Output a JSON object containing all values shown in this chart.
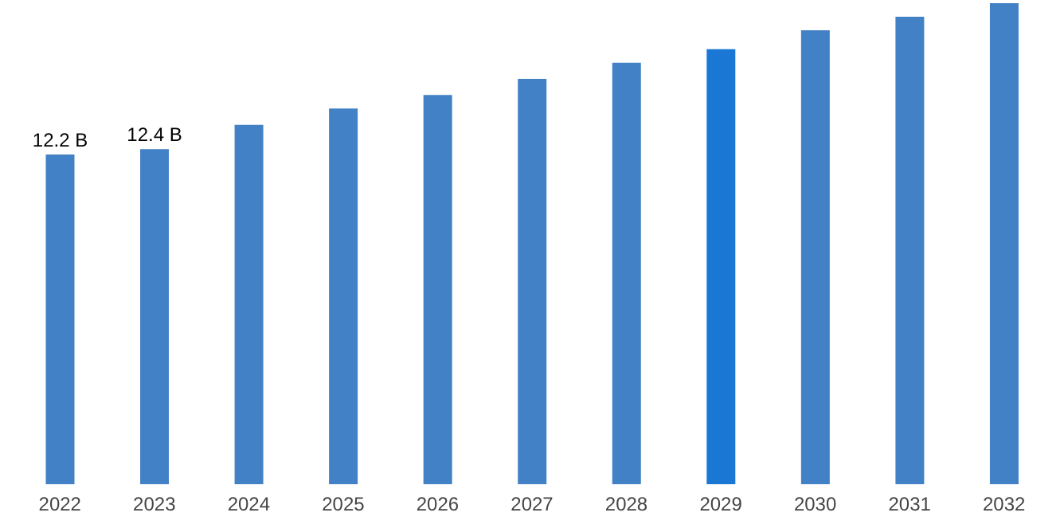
{
  "chart_data": {
    "type": "bar",
    "categories": [
      "2022",
      "2023",
      "2024",
      "2025",
      "2026",
      "2027",
      "2028",
      "2029",
      "2030",
      "2031",
      "2032"
    ],
    "values": [
      12.2,
      12.4,
      13.3,
      13.9,
      14.4,
      15.0,
      15.6,
      16.1,
      16.8,
      17.3,
      17.8
    ],
    "value_labels": [
      "12.2 B",
      "12.4 B",
      null,
      null,
      null,
      null,
      null,
      null,
      null,
      null,
      null
    ],
    "colors": [
      "#4281c6",
      "#4281c6",
      "#4281c6",
      "#4281c6",
      "#4281c6",
      "#4281c6",
      "#4281c6",
      "#1a78d4",
      "#4281c6",
      "#4281c6",
      "#4281c6"
    ],
    "grid": false,
    "legend": false
  }
}
